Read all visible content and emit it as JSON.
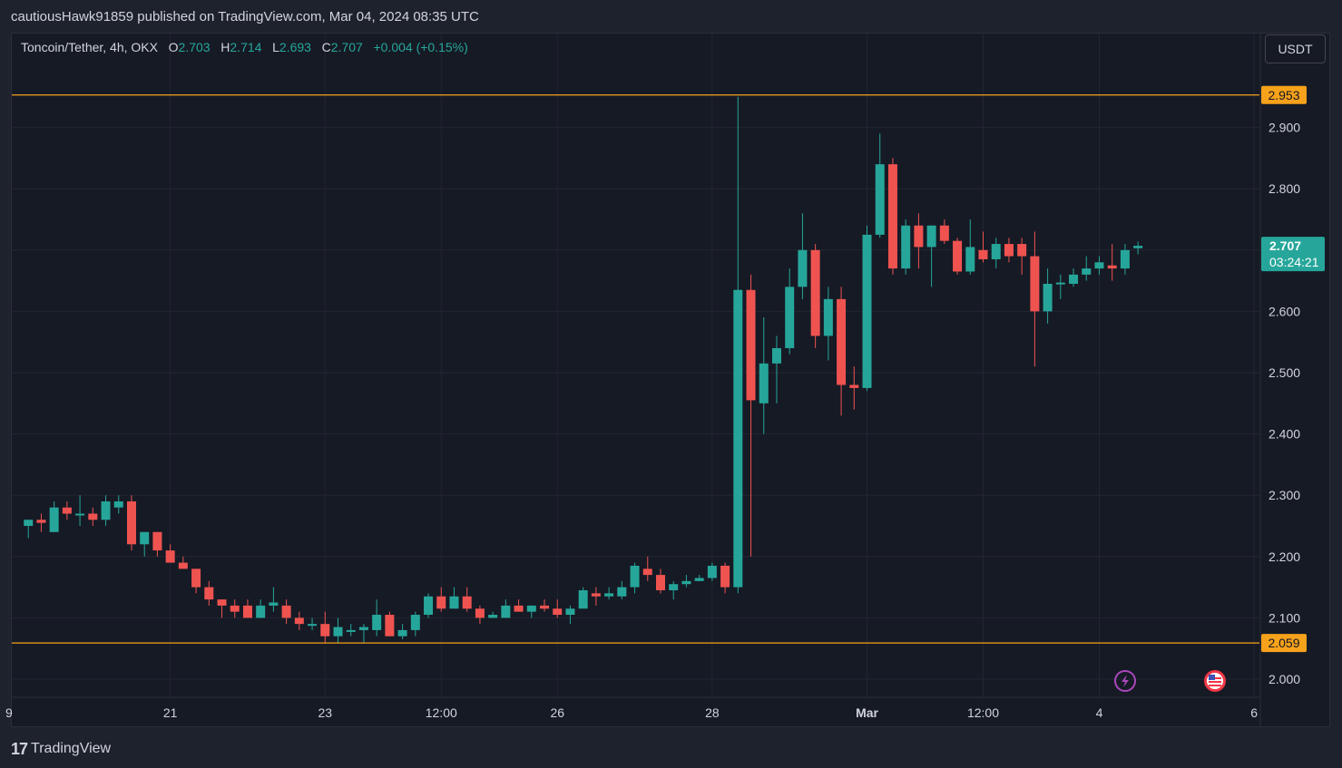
{
  "header": {
    "published_line": "cautiousHawk91859 published on TradingView.com, Mar 04, 2024 08:35 UTC"
  },
  "legend": {
    "symbol": "Toncoin/Tether, 4h, OKX",
    "open_label": "O",
    "open": "2.703",
    "high_label": "H",
    "high": "2.714",
    "low_label": "L",
    "low": "2.693",
    "close_label": "C",
    "close": "2.707",
    "change": "+0.004 (+0.15%)"
  },
  "unit_button": "USDT",
  "footer": {
    "brand_mark": "17",
    "brand": "TradingView"
  },
  "colors": {
    "up": "#26a69a",
    "down": "#ef5350",
    "level": "#f7a21b",
    "grid": "#232632",
    "background": "#161a25"
  },
  "icons": [
    "lightning-icon",
    "us-flag-icon"
  ],
  "chart_data": {
    "type": "candlestick",
    "ylim": [
      1.98,
      3.0
    ],
    "y_ticks": [
      "2.000",
      "2.100",
      "2.200",
      "2.300",
      "2.400",
      "2.500",
      "2.600",
      "2.700",
      "2.800",
      "2.900"
    ],
    "x_ticks": [
      {
        "label": "9",
        "bar": -0.5
      },
      {
        "label": "21",
        "bar": 12
      },
      {
        "label": "23",
        "bar": 24
      },
      {
        "label": "12:00",
        "bar": 33
      },
      {
        "label": "26",
        "bar": 42
      },
      {
        "label": "28",
        "bar": 54
      },
      {
        "label": "Mar",
        "bar": 66,
        "bold": true
      },
      {
        "label": "12:00",
        "bar": 75
      },
      {
        "label": "4",
        "bar": 84
      },
      {
        "label": "6",
        "bar": 96
      }
    ],
    "horizontal_levels": [
      {
        "value": 2.953,
        "label": "2.953"
      },
      {
        "value": 2.059,
        "label": "2.059"
      }
    ],
    "last_price": {
      "value": 2.707,
      "label": "2.707",
      "countdown": "03:24:21"
    },
    "candles": [
      [
        2.27,
        2.28,
        2.24,
        2.25
      ],
      [
        2.25,
        2.26,
        2.23,
        2.26
      ],
      [
        2.26,
        2.27,
        2.24,
        2.255
      ],
      [
        2.24,
        2.29,
        2.24,
        2.28
      ],
      [
        2.28,
        2.29,
        2.26,
        2.27
      ],
      [
        2.27,
        2.3,
        2.25,
        2.27
      ],
      [
        2.27,
        2.28,
        2.25,
        2.26
      ],
      [
        2.26,
        2.3,
        2.25,
        2.29
      ],
      [
        2.28,
        2.3,
        2.27,
        2.29
      ],
      [
        2.29,
        2.3,
        2.21,
        2.22
      ],
      [
        2.22,
        2.24,
        2.2,
        2.24
      ],
      [
        2.24,
        2.24,
        2.2,
        2.21
      ],
      [
        2.21,
        2.22,
        2.19,
        2.19
      ],
      [
        2.19,
        2.2,
        2.18,
        2.18
      ],
      [
        2.18,
        2.18,
        2.14,
        2.15
      ],
      [
        2.15,
        2.16,
        2.12,
        2.13
      ],
      [
        2.13,
        2.13,
        2.1,
        2.12
      ],
      [
        2.12,
        2.13,
        2.1,
        2.11
      ],
      [
        2.12,
        2.13,
        2.1,
        2.1
      ],
      [
        2.1,
        2.13,
        2.1,
        2.12
      ],
      [
        2.12,
        2.15,
        2.11,
        2.125
      ],
      [
        2.12,
        2.13,
        2.09,
        2.1
      ],
      [
        2.1,
        2.11,
        2.08,
        2.09
      ],
      [
        2.09,
        2.1,
        2.08,
        2.09
      ],
      [
        2.09,
        2.11,
        2.06,
        2.07
      ],
      [
        2.07,
        2.1,
        2.06,
        2.085
      ],
      [
        2.08,
        2.09,
        2.07,
        2.08
      ],
      [
        2.08,
        2.09,
        2.06,
        2.085
      ],
      [
        2.08,
        2.13,
        2.07,
        2.105
      ],
      [
        2.105,
        2.11,
        2.07,
        2.07
      ],
      [
        2.07,
        2.09,
        2.065,
        2.08
      ],
      [
        2.08,
        2.11,
        2.07,
        2.105
      ],
      [
        2.105,
        2.14,
        2.1,
        2.135
      ],
      [
        2.135,
        2.15,
        2.11,
        2.115
      ],
      [
        2.115,
        2.15,
        2.12,
        2.135
      ],
      [
        2.135,
        2.15,
        2.11,
        2.115
      ],
      [
        2.115,
        2.12,
        2.09,
        2.1
      ],
      [
        2.1,
        2.11,
        2.1,
        2.105
      ],
      [
        2.1,
        2.13,
        2.1,
        2.12
      ],
      [
        2.12,
        2.13,
        2.11,
        2.11
      ],
      [
        2.11,
        2.12,
        2.1,
        2.12
      ],
      [
        2.12,
        2.13,
        2.11,
        2.115
      ],
      [
        2.115,
        2.13,
        2.1,
        2.105
      ],
      [
        2.105,
        2.12,
        2.09,
        2.115
      ],
      [
        2.115,
        2.15,
        2.12,
        2.145
      ],
      [
        2.14,
        2.15,
        2.12,
        2.135
      ],
      [
        2.135,
        2.15,
        2.13,
        2.14
      ],
      [
        2.135,
        2.16,
        2.13,
        2.15
      ],
      [
        2.15,
        2.19,
        2.14,
        2.185
      ],
      [
        2.18,
        2.2,
        2.16,
        2.17
      ],
      [
        2.17,
        2.18,
        2.14,
        2.145
      ],
      [
        2.145,
        2.16,
        2.13,
        2.155
      ],
      [
        2.155,
        2.17,
        2.15,
        2.16
      ],
      [
        2.16,
        2.17,
        2.16,
        2.165
      ],
      [
        2.165,
        2.19,
        2.16,
        2.185
      ],
      [
        2.185,
        2.19,
        2.14,
        2.15
      ],
      [
        2.15,
        2.95,
        2.14,
        2.635
      ],
      [
        2.635,
        2.66,
        2.2,
        2.455
      ],
      [
        2.45,
        2.59,
        2.4,
        2.515
      ],
      [
        2.515,
        2.56,
        2.45,
        2.54
      ],
      [
        2.54,
        2.67,
        2.53,
        2.64
      ],
      [
        2.64,
        2.76,
        2.62,
        2.7
      ],
      [
        2.7,
        2.71,
        2.54,
        2.56
      ],
      [
        2.56,
        2.64,
        2.52,
        2.62
      ],
      [
        2.62,
        2.64,
        2.43,
        2.48
      ],
      [
        2.48,
        2.51,
        2.44,
        2.475
      ],
      [
        2.475,
        2.74,
        2.47,
        2.725
      ],
      [
        2.725,
        2.89,
        2.72,
        2.84
      ],
      [
        2.84,
        2.85,
        2.66,
        2.67
      ],
      [
        2.67,
        2.75,
        2.66,
        2.74
      ],
      [
        2.74,
        2.76,
        2.67,
        2.705
      ],
      [
        2.705,
        2.74,
        2.64,
        2.74
      ],
      [
        2.74,
        2.75,
        2.71,
        2.715
      ],
      [
        2.715,
        2.72,
        2.66,
        2.665
      ],
      [
        2.665,
        2.75,
        2.66,
        2.705
      ],
      [
        2.7,
        2.73,
        2.68,
        2.685
      ],
      [
        2.685,
        2.72,
        2.67,
        2.71
      ],
      [
        2.71,
        2.72,
        2.68,
        2.69
      ],
      [
        2.71,
        2.72,
        2.66,
        2.69
      ],
      [
        2.69,
        2.73,
        2.51,
        2.6
      ],
      [
        2.6,
        2.67,
        2.58,
        2.645
      ],
      [
        2.645,
        2.66,
        2.62,
        2.647
      ],
      [
        2.645,
        2.67,
        2.64,
        2.66
      ],
      [
        2.66,
        2.69,
        2.65,
        2.67
      ],
      [
        2.67,
        2.69,
        2.66,
        2.68
      ],
      [
        2.675,
        2.71,
        2.65,
        2.67
      ],
      [
        2.67,
        2.71,
        2.66,
        2.7
      ],
      [
        2.703,
        2.714,
        2.693,
        2.707
      ]
    ]
  }
}
